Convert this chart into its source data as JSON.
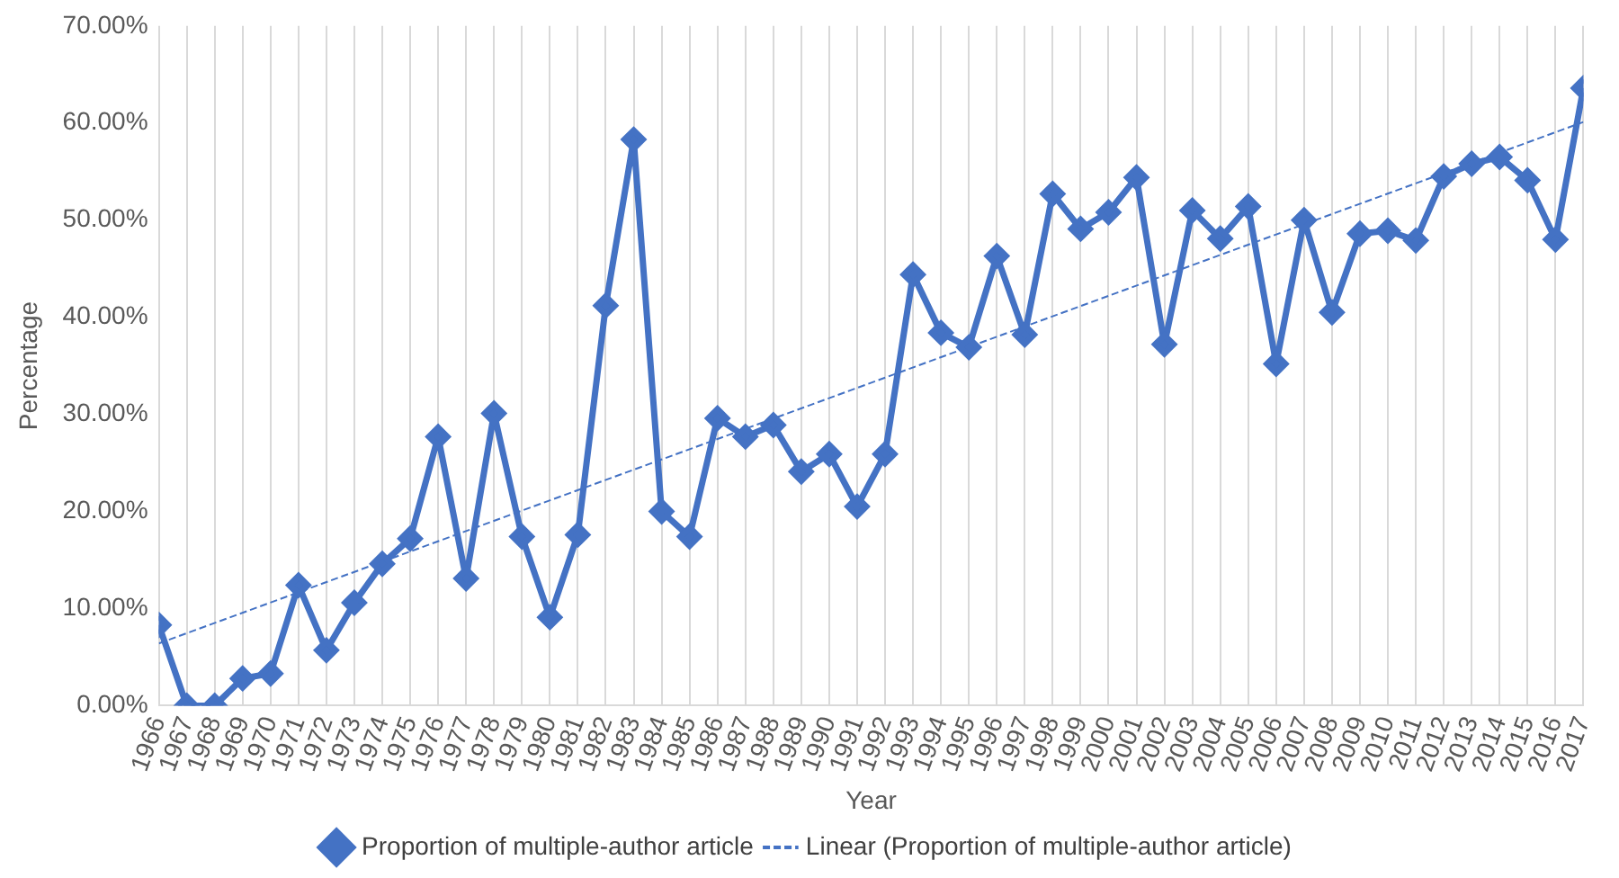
{
  "chart_data": {
    "type": "line",
    "xlabel": "Year",
    "ylabel": "Percentage",
    "x": [
      1966,
      1967,
      1968,
      1969,
      1970,
      1971,
      1972,
      1973,
      1974,
      1975,
      1976,
      1977,
      1978,
      1979,
      1980,
      1981,
      1982,
      1983,
      1984,
      1985,
      1986,
      1987,
      1988,
      1989,
      1990,
      1991,
      1992,
      1993,
      1994,
      1995,
      1996,
      1997,
      1998,
      1999,
      2000,
      2001,
      2002,
      2003,
      2004,
      2005,
      2006,
      2007,
      2008,
      2009,
      2010,
      2011,
      2012,
      2013,
      2014,
      2015,
      2016,
      2017
    ],
    "series": [
      {
        "name": "Proportion of multiple-author article",
        "color": "#4472c4",
        "marker": "diamond",
        "line_style": "solid",
        "values": [
          8.3,
          0,
          0,
          2.8,
          3.3,
          12.4,
          5.7,
          10.6,
          14.6,
          17.2,
          27.7,
          13.1,
          30.1,
          17.4,
          9.1,
          17.6,
          41.2,
          58.3,
          20.0,
          17.4,
          29.6,
          27.7,
          28.9,
          24.1,
          25.9,
          20.5,
          25.9,
          44.4,
          38.4,
          36.9,
          46.3,
          38.2,
          52.7,
          49.1,
          50.8,
          54.4,
          37.2,
          51.0,
          48.1,
          51.4,
          35.2,
          50.0,
          40.5,
          48.6,
          48.9,
          47.9,
          54.5,
          55.8,
          56.5,
          54.1,
          48.0,
          63.6
        ]
      },
      {
        "name": "Linear (Proportion of multiple-author article)",
        "type": "line",
        "color": "#4472c4",
        "marker": "none",
        "line_style": "dashed",
        "x": [
          1966,
          2017
        ],
        "values": [
          6.4,
          60.1
        ]
      }
    ],
    "xlim": [
      1966,
      2017
    ],
    "xticks": [
      1966,
      1967,
      1968,
      1969,
      1970,
      1971,
      1972,
      1973,
      1974,
      1975,
      1976,
      1977,
      1978,
      1979,
      1980,
      1981,
      1982,
      1983,
      1984,
      1985,
      1986,
      1987,
      1988,
      1989,
      1990,
      1991,
      1992,
      1993,
      1994,
      1995,
      1996,
      1997,
      1998,
      1999,
      2000,
      2001,
      2002,
      2003,
      2004,
      2005,
      2006,
      2007,
      2008,
      2009,
      2010,
      2011,
      2012,
      2013,
      2014,
      2015,
      2016,
      2017
    ],
    "ylim": [
      0,
      70
    ],
    "yticks": [
      {
        "value": 0,
        "label": "0.00%"
      },
      {
        "value": 10,
        "label": "10.00%"
      },
      {
        "value": 20,
        "label": "20.00%"
      },
      {
        "value": 30,
        "label": "30.00%"
      },
      {
        "value": 40,
        "label": "40.00%"
      },
      {
        "value": 50,
        "label": "50.00%"
      },
      {
        "value": 60,
        "label": "60.00%"
      },
      {
        "value": 70,
        "label": "70.00%"
      }
    ],
    "grid": "x",
    "legend": "bottom"
  }
}
